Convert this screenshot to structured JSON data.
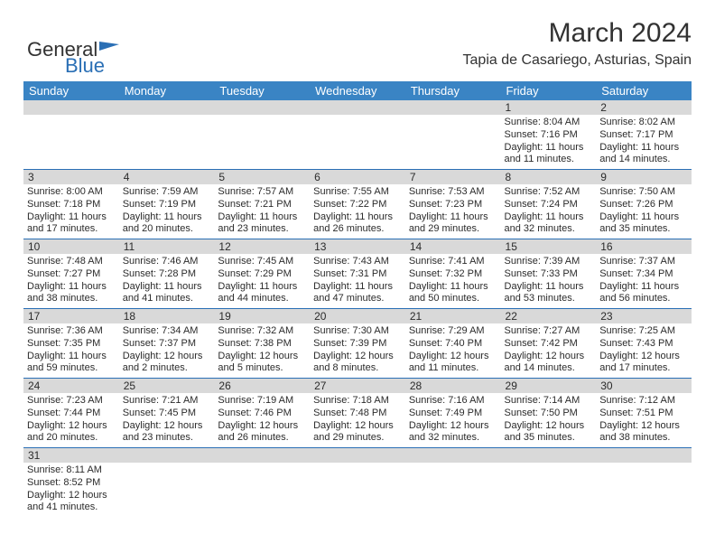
{
  "logo": {
    "text_general": "Genera",
    "text_l": "l",
    "text_blue": "Blue"
  },
  "title": "March 2024",
  "subtitle": "Tapia de Casariego, Asturias, Spain",
  "day_headers": [
    "Sunday",
    "Monday",
    "Tuesday",
    "Wednesday",
    "Thursday",
    "Friday",
    "Saturday"
  ],
  "colors": {
    "header_bg": "#3a84c4",
    "header_fg": "#ffffff",
    "daynum_bg": "#d9d9d9",
    "border": "#2a6fb5",
    "text": "#2b2b2b",
    "background": "#ffffff"
  },
  "fonts": {
    "title": 30,
    "subtitle": 16,
    "header": 13,
    "cell": 11,
    "daynum": 12
  },
  "weeks": [
    {
      "nums": [
        "",
        "",
        "",
        "",
        "",
        "1",
        "2"
      ],
      "cells": [
        null,
        null,
        null,
        null,
        null,
        {
          "sr": "Sunrise: 8:04 AM",
          "ss": "Sunset: 7:16 PM",
          "d1": "Daylight: 11 hours",
          "d2": "and 11 minutes."
        },
        {
          "sr": "Sunrise: 8:02 AM",
          "ss": "Sunset: 7:17 PM",
          "d1": "Daylight: 11 hours",
          "d2": "and 14 minutes."
        }
      ]
    },
    {
      "nums": [
        "3",
        "4",
        "5",
        "6",
        "7",
        "8",
        "9"
      ],
      "cells": [
        {
          "sr": "Sunrise: 8:00 AM",
          "ss": "Sunset: 7:18 PM",
          "d1": "Daylight: 11 hours",
          "d2": "and 17 minutes."
        },
        {
          "sr": "Sunrise: 7:59 AM",
          "ss": "Sunset: 7:19 PM",
          "d1": "Daylight: 11 hours",
          "d2": "and 20 minutes."
        },
        {
          "sr": "Sunrise: 7:57 AM",
          "ss": "Sunset: 7:21 PM",
          "d1": "Daylight: 11 hours",
          "d2": "and 23 minutes."
        },
        {
          "sr": "Sunrise: 7:55 AM",
          "ss": "Sunset: 7:22 PM",
          "d1": "Daylight: 11 hours",
          "d2": "and 26 minutes."
        },
        {
          "sr": "Sunrise: 7:53 AM",
          "ss": "Sunset: 7:23 PM",
          "d1": "Daylight: 11 hours",
          "d2": "and 29 minutes."
        },
        {
          "sr": "Sunrise: 7:52 AM",
          "ss": "Sunset: 7:24 PM",
          "d1": "Daylight: 11 hours",
          "d2": "and 32 minutes."
        },
        {
          "sr": "Sunrise: 7:50 AM",
          "ss": "Sunset: 7:26 PM",
          "d1": "Daylight: 11 hours",
          "d2": "and 35 minutes."
        }
      ]
    },
    {
      "nums": [
        "10",
        "11",
        "12",
        "13",
        "14",
        "15",
        "16"
      ],
      "cells": [
        {
          "sr": "Sunrise: 7:48 AM",
          "ss": "Sunset: 7:27 PM",
          "d1": "Daylight: 11 hours",
          "d2": "and 38 minutes."
        },
        {
          "sr": "Sunrise: 7:46 AM",
          "ss": "Sunset: 7:28 PM",
          "d1": "Daylight: 11 hours",
          "d2": "and 41 minutes."
        },
        {
          "sr": "Sunrise: 7:45 AM",
          "ss": "Sunset: 7:29 PM",
          "d1": "Daylight: 11 hours",
          "d2": "and 44 minutes."
        },
        {
          "sr": "Sunrise: 7:43 AM",
          "ss": "Sunset: 7:31 PM",
          "d1": "Daylight: 11 hours",
          "d2": "and 47 minutes."
        },
        {
          "sr": "Sunrise: 7:41 AM",
          "ss": "Sunset: 7:32 PM",
          "d1": "Daylight: 11 hours",
          "d2": "and 50 minutes."
        },
        {
          "sr": "Sunrise: 7:39 AM",
          "ss": "Sunset: 7:33 PM",
          "d1": "Daylight: 11 hours",
          "d2": "and 53 minutes."
        },
        {
          "sr": "Sunrise: 7:37 AM",
          "ss": "Sunset: 7:34 PM",
          "d1": "Daylight: 11 hours",
          "d2": "and 56 minutes."
        }
      ]
    },
    {
      "nums": [
        "17",
        "18",
        "19",
        "20",
        "21",
        "22",
        "23"
      ],
      "cells": [
        {
          "sr": "Sunrise: 7:36 AM",
          "ss": "Sunset: 7:35 PM",
          "d1": "Daylight: 11 hours",
          "d2": "and 59 minutes."
        },
        {
          "sr": "Sunrise: 7:34 AM",
          "ss": "Sunset: 7:37 PM",
          "d1": "Daylight: 12 hours",
          "d2": "and 2 minutes."
        },
        {
          "sr": "Sunrise: 7:32 AM",
          "ss": "Sunset: 7:38 PM",
          "d1": "Daylight: 12 hours",
          "d2": "and 5 minutes."
        },
        {
          "sr": "Sunrise: 7:30 AM",
          "ss": "Sunset: 7:39 PM",
          "d1": "Daylight: 12 hours",
          "d2": "and 8 minutes."
        },
        {
          "sr": "Sunrise: 7:29 AM",
          "ss": "Sunset: 7:40 PM",
          "d1": "Daylight: 12 hours",
          "d2": "and 11 minutes."
        },
        {
          "sr": "Sunrise: 7:27 AM",
          "ss": "Sunset: 7:42 PM",
          "d1": "Daylight: 12 hours",
          "d2": "and 14 minutes."
        },
        {
          "sr": "Sunrise: 7:25 AM",
          "ss": "Sunset: 7:43 PM",
          "d1": "Daylight: 12 hours",
          "d2": "and 17 minutes."
        }
      ]
    },
    {
      "nums": [
        "24",
        "25",
        "26",
        "27",
        "28",
        "29",
        "30"
      ],
      "cells": [
        {
          "sr": "Sunrise: 7:23 AM",
          "ss": "Sunset: 7:44 PM",
          "d1": "Daylight: 12 hours",
          "d2": "and 20 minutes."
        },
        {
          "sr": "Sunrise: 7:21 AM",
          "ss": "Sunset: 7:45 PM",
          "d1": "Daylight: 12 hours",
          "d2": "and 23 minutes."
        },
        {
          "sr": "Sunrise: 7:19 AM",
          "ss": "Sunset: 7:46 PM",
          "d1": "Daylight: 12 hours",
          "d2": "and 26 minutes."
        },
        {
          "sr": "Sunrise: 7:18 AM",
          "ss": "Sunset: 7:48 PM",
          "d1": "Daylight: 12 hours",
          "d2": "and 29 minutes."
        },
        {
          "sr": "Sunrise: 7:16 AM",
          "ss": "Sunset: 7:49 PM",
          "d1": "Daylight: 12 hours",
          "d2": "and 32 minutes."
        },
        {
          "sr": "Sunrise: 7:14 AM",
          "ss": "Sunset: 7:50 PM",
          "d1": "Daylight: 12 hours",
          "d2": "and 35 minutes."
        },
        {
          "sr": "Sunrise: 7:12 AM",
          "ss": "Sunset: 7:51 PM",
          "d1": "Daylight: 12 hours",
          "d2": "and 38 minutes."
        }
      ]
    },
    {
      "nums": [
        "31",
        "",
        "",
        "",
        "",
        "",
        ""
      ],
      "cells": [
        {
          "sr": "Sunrise: 8:11 AM",
          "ss": "Sunset: 8:52 PM",
          "d1": "Daylight: 12 hours",
          "d2": "and 41 minutes."
        },
        null,
        null,
        null,
        null,
        null,
        null
      ]
    }
  ]
}
